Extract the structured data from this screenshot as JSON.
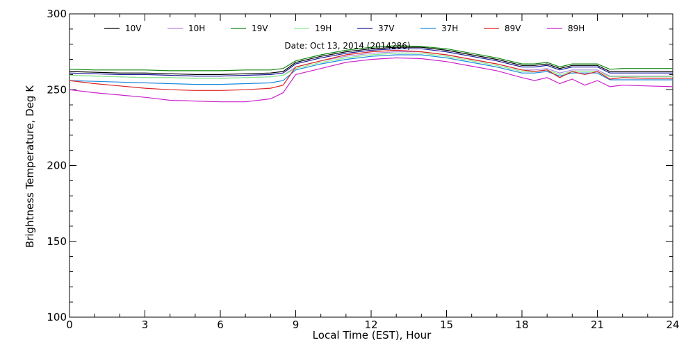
{
  "chart_data": {
    "type": "line",
    "title": "",
    "annotation": "Date: Oct 13, 2014 (2014286)",
    "xlabel": "Local Time (EST), Hour",
    "ylabel": "Brightness Temperature, Deg  K",
    "xlim": [
      0,
      24
    ],
    "ylim": [
      100,
      300
    ],
    "xticks": [
      0,
      3,
      6,
      9,
      12,
      15,
      18,
      21,
      24
    ],
    "yticks": [
      100,
      150,
      200,
      250,
      300
    ],
    "grid": false,
    "legend_position": "top, horizontal row inside plot",
    "x": [
      0,
      1,
      2,
      3,
      4,
      5,
      6,
      7,
      8,
      8.5,
      9,
      10,
      11,
      12,
      13,
      14,
      15,
      16,
      17,
      18,
      18.5,
      19,
      19.5,
      20,
      20.5,
      21,
      21.5,
      22,
      23,
      24
    ],
    "series": [
      {
        "name": "10V",
        "color": "#000000",
        "values": [
          262,
          261.5,
          261,
          261,
          260.5,
          260,
          260,
          260.5,
          261,
          262,
          268,
          272,
          275,
          277,
          278,
          278,
          276,
          273,
          270,
          266,
          266,
          267,
          264,
          266,
          266,
          266,
          262,
          262,
          262,
          262
        ]
      },
      {
        "name": "10H",
        "color": "#b088e0",
        "values": [
          259.5,
          259,
          258.5,
          258,
          258,
          257.5,
          257.5,
          258,
          258.5,
          259.5,
          265,
          269,
          272,
          274,
          275,
          275,
          273,
          270,
          267,
          263,
          263,
          264,
          261,
          263,
          263,
          263,
          259,
          259,
          259,
          259
        ]
      },
      {
        "name": "19V",
        "color": "#118811",
        "values": [
          263.5,
          263,
          263,
          263,
          262.5,
          262.5,
          262.5,
          263,
          263,
          264,
          269,
          273,
          276,
          278,
          279,
          278.5,
          277,
          274,
          271,
          267,
          267,
          268,
          265,
          267,
          267,
          267,
          263.5,
          264,
          264,
          264
        ]
      },
      {
        "name": "19H",
        "color": "#88ee88",
        "values": [
          259.5,
          259,
          258.5,
          258,
          258,
          257.5,
          257.5,
          258,
          258.5,
          259.5,
          264,
          268,
          271,
          273,
          274,
          274,
          272,
          269,
          266,
          262,
          262,
          263,
          260,
          262,
          262,
          262,
          258.5,
          258.5,
          258.5,
          258.5
        ]
      },
      {
        "name": "37V",
        "color": "#1a1a99",
        "values": [
          261,
          260.5,
          260,
          260,
          259.5,
          259,
          259,
          259.5,
          260,
          261,
          267,
          271,
          274,
          276,
          277,
          277,
          275,
          272,
          269,
          265,
          265,
          266,
          263,
          265,
          265,
          265,
          261,
          261,
          261,
          261
        ]
      },
      {
        "name": "37H",
        "color": "#1a88dd",
        "values": [
          256,
          255.5,
          255,
          254.5,
          254,
          253.5,
          253.5,
          254,
          254.5,
          256,
          263,
          267,
          270,
          272,
          273,
          273,
          271,
          268,
          265,
          261,
          261,
          262,
          259,
          261,
          261,
          261,
          256.5,
          256.5,
          256.5,
          256.5
        ]
      },
      {
        "name": "89V",
        "color": "#dd2222",
        "values": [
          256,
          254,
          252.5,
          251,
          250,
          249.5,
          249.5,
          250,
          251,
          253,
          265,
          269,
          273,
          275,
          276,
          275,
          273,
          270,
          267,
          263,
          262,
          263,
          258,
          262,
          260,
          262,
          257,
          258,
          257.5,
          257.5
        ]
      },
      {
        "name": "89H",
        "color": "#cc22cc",
        "values": [
          250,
          248,
          246.5,
          245,
          243,
          242.5,
          242,
          242,
          244,
          248,
          260,
          264,
          268,
          270,
          271,
          270.5,
          268.5,
          265.5,
          262.5,
          258,
          256,
          258,
          254,
          257,
          253,
          256,
          252,
          253,
          252.5,
          252
        ]
      }
    ]
  }
}
